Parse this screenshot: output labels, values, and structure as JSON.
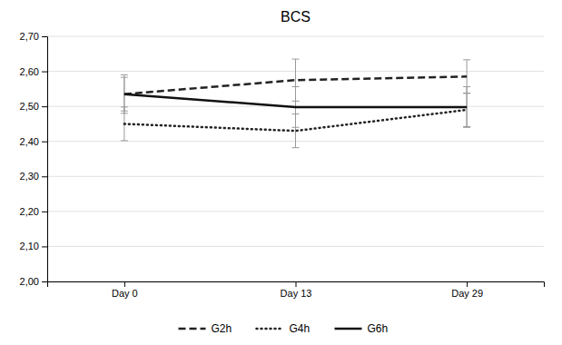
{
  "chart_data": {
    "type": "line",
    "title": "BCS",
    "categories": [
      "Day 0",
      "Day 13",
      "Day 29"
    ],
    "series": [
      {
        "name": "G2h",
        "color": "#222222",
        "line_style": "dashed",
        "values": [
          2.535,
          2.575,
          2.585
        ],
        "errors": [
          0.055,
          0.06,
          0.048
        ]
      },
      {
        "name": "G4h",
        "color": "#222222",
        "line_style": "dotted",
        "values": [
          2.45,
          2.43,
          2.49
        ],
        "errors": [
          0.048,
          0.048,
          0.048
        ]
      },
      {
        "name": "G6h",
        "color": "#111111",
        "line_style": "solid",
        "values": [
          2.535,
          2.498,
          2.498
        ],
        "errors": [
          0.048,
          0.058,
          0.058
        ]
      }
    ],
    "ylim": [
      2.0,
      2.7
    ],
    "yticks": [
      {
        "value": 2.0,
        "label": "2,00"
      },
      {
        "value": 2.1,
        "label": "2,10"
      },
      {
        "value": 2.2,
        "label": "2,20"
      },
      {
        "value": 2.3,
        "label": "2,30"
      },
      {
        "value": 2.4,
        "label": "2,40"
      },
      {
        "value": 2.5,
        "label": "2,50"
      },
      {
        "value": 2.6,
        "label": "2,60"
      },
      {
        "value": 2.7,
        "label": "2,70"
      }
    ],
    "grid": true,
    "legend": "bottom"
  }
}
